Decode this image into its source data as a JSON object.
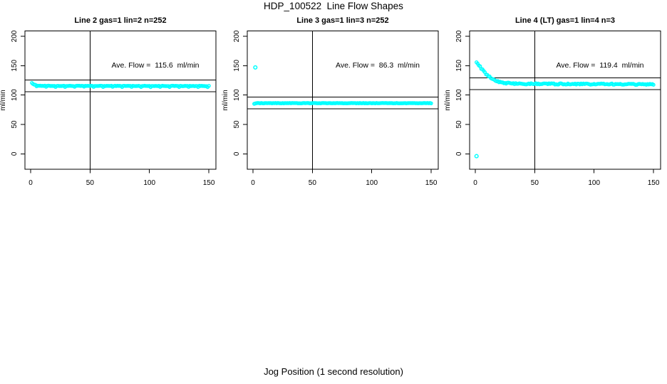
{
  "page": {
    "main_title": "HDP_100522  Line Flow Shapes",
    "x_axis_label": "Jog Position (1 second resolution)"
  },
  "colors": {
    "points": "#00FFFF",
    "axis": "#000000",
    "text": "#000000",
    "background": "#FFFFFF"
  },
  "chart_data": [
    {
      "type": "scatter",
      "title": "Line 2 gas=1 lin=2 n=252",
      "ylabel": "ml/min",
      "annotation": "Ave. Flow =  115.6  ml/min",
      "ave_flow_ml_min": 115.6,
      "n": 252,
      "xlim": [
        0,
        150
      ],
      "ylim": [
        0,
        200
      ],
      "x_ticks": [
        0,
        50,
        100,
        150
      ],
      "y_ticks": [
        0,
        50,
        100,
        150,
        200
      ],
      "crosshair_x": 50,
      "ref_lines_y": [
        125.6,
        105.6
      ],
      "profile_points": [
        [
          1,
          121
        ],
        [
          2,
          119
        ],
        [
          3,
          117.8
        ],
        [
          4,
          117
        ],
        [
          6,
          116.2
        ],
        [
          8,
          115.8
        ],
        [
          12,
          115.6
        ],
        [
          20,
          115.5
        ],
        [
          60,
          115.5
        ],
        [
          150,
          115.4
        ]
      ],
      "band_jitter": 0.35,
      "dip_every": 8,
      "dip_amount": 1.6,
      "outliers": []
    },
    {
      "type": "scatter",
      "title": "Line 3 gas=1 lin=3 n=252",
      "ylabel": "ml/min",
      "annotation": "Ave. Flow =  86.3  ml/min",
      "ave_flow_ml_min": 86.3,
      "n": 252,
      "xlim": [
        0,
        150
      ],
      "ylim": [
        0,
        200
      ],
      "x_ticks": [
        0,
        50,
        100,
        150
      ],
      "y_ticks": [
        0,
        50,
        100,
        150,
        200
      ],
      "crosshair_x": 50,
      "ref_lines_y": [
        96.3,
        76.3
      ],
      "profile_points": [
        [
          1,
          85.3
        ],
        [
          2,
          85.8
        ],
        [
          4,
          86.2
        ],
        [
          150,
          86.2
        ]
      ],
      "band_jitter": 0.35,
      "dip_every": 0,
      "dip_amount": 0,
      "outliers": [
        [
          2,
          147
        ]
      ]
    },
    {
      "type": "scatter",
      "title": "Line 4 (LT) gas=1 lin=4 n=3",
      "ylabel": "ml/min",
      "annotation": "Ave. Flow =  119.4  ml/min",
      "ave_flow_ml_min": 119.4,
      "n": 3,
      "xlim": [
        0,
        150
      ],
      "ylim": [
        0,
        200
      ],
      "x_ticks": [
        0,
        50,
        100,
        150
      ],
      "y_ticks": [
        0,
        50,
        100,
        150,
        200
      ],
      "crosshair_x": 50,
      "ref_lines_y": [
        129.4,
        109.4
      ],
      "profile_points": [
        [
          1,
          156.5
        ],
        [
          2,
          154
        ],
        [
          3,
          151.2
        ],
        [
          4,
          148.3
        ],
        [
          5,
          145.5
        ],
        [
          6,
          143
        ],
        [
          7,
          140.6
        ],
        [
          8,
          138.3
        ],
        [
          9,
          136.2
        ],
        [
          10,
          134.2
        ],
        [
          12,
          130.8
        ],
        [
          14,
          128
        ],
        [
          16,
          125.7
        ],
        [
          18,
          123.9
        ],
        [
          20,
          122.5
        ],
        [
          23,
          121.1
        ],
        [
          26,
          120.3
        ],
        [
          30,
          119.7
        ],
        [
          40,
          119.2
        ],
        [
          60,
          119
        ],
        [
          90,
          118.7
        ],
        [
          120,
          118.4
        ],
        [
          150,
          118.2
        ]
      ],
      "band_jitter": 1.1,
      "dip_every": 0,
      "dip_amount": 0,
      "outliers": [
        [
          1,
          -4
        ]
      ]
    }
  ]
}
